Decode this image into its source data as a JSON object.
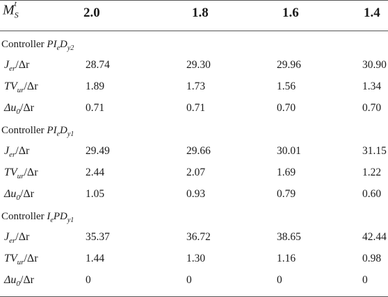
{
  "header": {
    "symbol": "M",
    "symbol_sub": "S",
    "symbol_sup": "t",
    "columns": [
      "2.0",
      "1.8",
      "1.6",
      "1.4"
    ]
  },
  "sections": [
    {
      "prefix": "Controller ",
      "controller": "PI",
      "controller_sub1": "e",
      "controller_mid": "D",
      "controller_sub2": "y2",
      "rows": [
        {
          "name": "J",
          "sub": "er",
          "suffix": "/Δr",
          "values": [
            "28.74",
            "29.30",
            "29.96",
            "30.90"
          ]
        },
        {
          "name": "TV",
          "sub": "ur",
          "suffix": "/Δr",
          "values": [
            "1.89",
            "1.73",
            "1.56",
            "1.34"
          ]
        },
        {
          "name": "Δu",
          "sub": "0",
          "suffix": "/Δr",
          "values": [
            "0.71",
            "0.71",
            "0.70",
            "0.70"
          ]
        }
      ]
    },
    {
      "prefix": "Controller ",
      "controller": "PI",
      "controller_sub1": "e",
      "controller_mid": "D",
      "controller_sub2": "y1",
      "rows": [
        {
          "name": "J",
          "sub": "er",
          "suffix": "/Δr",
          "values": [
            "29.49",
            "29.66",
            "30.01",
            "31.15"
          ]
        },
        {
          "name": "TV",
          "sub": "ur",
          "suffix": "/Δr",
          "values": [
            "2.44",
            "2.07",
            "1.69",
            "1.22"
          ]
        },
        {
          "name": "Δu",
          "sub": "0",
          "suffix": "/Δr",
          "values": [
            "1.05",
            "0.93",
            "0.79",
            "0.60"
          ]
        }
      ]
    },
    {
      "prefix": "Controller ",
      "controller": "I",
      "controller_sub1": "e",
      "controller_mid": "PD",
      "controller_sub2": "y1",
      "rows": [
        {
          "name": "J",
          "sub": "er",
          "suffix": "/Δr",
          "values": [
            "35.37",
            "36.72",
            "38.65",
            "42.44"
          ]
        },
        {
          "name": "TV",
          "sub": "ur",
          "suffix": "/Δr",
          "values": [
            "1.44",
            "1.30",
            "1.16",
            "0.98"
          ]
        },
        {
          "name": "Δu",
          "sub": "0",
          "suffix": "/Δr",
          "values": [
            "0",
            "0",
            "0",
            "0"
          ]
        }
      ]
    }
  ]
}
